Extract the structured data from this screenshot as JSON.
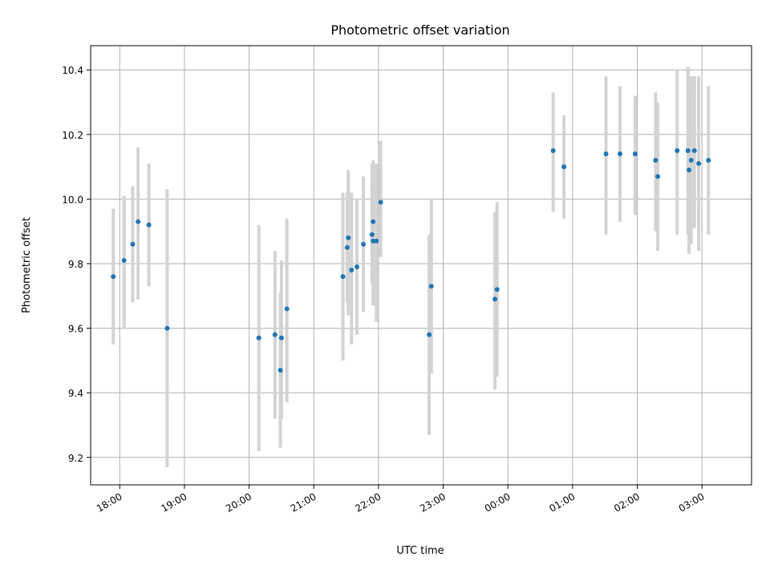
{
  "chart_data": {
    "type": "scatter",
    "title": "Photometric offset variation",
    "xlabel": "UTC time",
    "ylabel": "Photometric offset",
    "x_unit": "UTC time (HH:MM), spanning midnight",
    "ylim": [
      9.115,
      10.475
    ],
    "xlim": [
      "17:33",
      "03:46"
    ],
    "grid": true,
    "colors": {
      "point": "#1f77b4",
      "errorbar": "#d3d3d3"
    },
    "yticks": [
      "9.2",
      "9.4",
      "9.6",
      "9.8",
      "10.0",
      "10.2",
      "10.4"
    ],
    "xticks": [
      "18:00",
      "19:00",
      "20:00",
      "21:00",
      "22:00",
      "23:00",
      "00:00",
      "01:00",
      "02:00",
      "03:00"
    ],
    "series": [
      {
        "points": [
          {
            "x": "17:54",
            "y": 9.76,
            "lo": 9.55,
            "hi": 9.97
          },
          {
            "x": "18:04",
            "y": 9.81,
            "lo": 9.6,
            "hi": 10.01
          },
          {
            "x": "18:12",
            "y": 9.86,
            "lo": 9.68,
            "hi": 10.04
          },
          {
            "x": "18:17",
            "y": 9.93,
            "lo": 9.69,
            "hi": 10.16
          },
          {
            "x": "18:27",
            "y": 9.92,
            "lo": 9.73,
            "hi": 10.11
          },
          {
            "x": "18:44",
            "y": 9.6,
            "lo": 9.17,
            "hi": 10.03
          },
          {
            "x": "20:09",
            "y": 9.57,
            "lo": 9.22,
            "hi": 9.92
          },
          {
            "x": "20:24",
            "y": 9.58,
            "lo": 9.32,
            "hi": 9.84
          },
          {
            "x": "20:29",
            "y": 9.47,
            "lo": 9.23,
            "hi": 9.71
          },
          {
            "x": "20:30",
            "y": 9.57,
            "lo": 9.32,
            "hi": 9.81
          },
          {
            "x": "20:35",
            "y": 9.66,
            "lo": 9.37,
            "hi": 9.94
          },
          {
            "x": "21:27",
            "y": 9.76,
            "lo": 9.5,
            "hi": 10.02
          },
          {
            "x": "21:31",
            "y": 9.85,
            "lo": 9.68,
            "hi": 10.02
          },
          {
            "x": "21:32",
            "y": 9.88,
            "lo": 9.64,
            "hi": 10.09
          },
          {
            "x": "21:35",
            "y": 9.78,
            "lo": 9.55,
            "hi": 10.02
          },
          {
            "x": "21:40",
            "y": 9.79,
            "lo": 9.58,
            "hi": 10.0
          },
          {
            "x": "21:46",
            "y": 9.86,
            "lo": 9.65,
            "hi": 10.07
          },
          {
            "x": "21:54",
            "y": 9.89,
            "lo": 9.74,
            "hi": 10.11
          },
          {
            "x": "21:55",
            "y": 9.93,
            "lo": 9.73,
            "hi": 10.12
          },
          {
            "x": "21:55",
            "y": 9.87,
            "lo": 9.67,
            "hi": 10.06
          },
          {
            "x": "21:58",
            "y": 9.87,
            "lo": 9.62,
            "hi": 10.11
          },
          {
            "x": "22:02",
            "y": 9.99,
            "lo": 9.82,
            "hi": 10.18
          },
          {
            "x": "22:47",
            "y": 9.58,
            "lo": 9.27,
            "hi": 9.89
          },
          {
            "x": "22:49",
            "y": 9.73,
            "lo": 9.46,
            "hi": 10.0
          },
          {
            "x": "23:48",
            "y": 9.69,
            "lo": 9.41,
            "hi": 9.96
          },
          {
            "x": "23:50",
            "y": 9.72,
            "lo": 9.45,
            "hi": 9.99
          },
          {
            "x": "00:42",
            "y": 10.15,
            "lo": 9.96,
            "hi": 10.33
          },
          {
            "x": "00:52",
            "y": 10.1,
            "lo": 9.94,
            "hi": 10.26
          },
          {
            "x": "01:31",
            "y": 10.14,
            "lo": 9.89,
            "hi": 10.38
          },
          {
            "x": "01:44",
            "y": 10.14,
            "lo": 9.93,
            "hi": 10.35
          },
          {
            "x": "01:58",
            "y": 10.14,
            "lo": 9.95,
            "hi": 10.32
          },
          {
            "x": "02:17",
            "y": 10.12,
            "lo": 9.9,
            "hi": 10.33
          },
          {
            "x": "02:19",
            "y": 10.07,
            "lo": 9.84,
            "hi": 10.3
          },
          {
            "x": "02:37",
            "y": 10.15,
            "lo": 9.89,
            "hi": 10.4
          },
          {
            "x": "02:47",
            "y": 10.15,
            "lo": 9.89,
            "hi": 10.41
          },
          {
            "x": "02:48",
            "y": 10.09,
            "lo": 9.83,
            "hi": 10.34
          },
          {
            "x": "02:50",
            "y": 10.12,
            "lo": 9.86,
            "hi": 10.38
          },
          {
            "x": "02:53",
            "y": 10.15,
            "lo": 9.91,
            "hi": 10.38
          },
          {
            "x": "02:57",
            "y": 10.11,
            "lo": 9.84,
            "hi": 10.38
          },
          {
            "x": "03:06",
            "y": 10.12,
            "lo": 9.89,
            "hi": 10.35
          }
        ]
      }
    ]
  }
}
